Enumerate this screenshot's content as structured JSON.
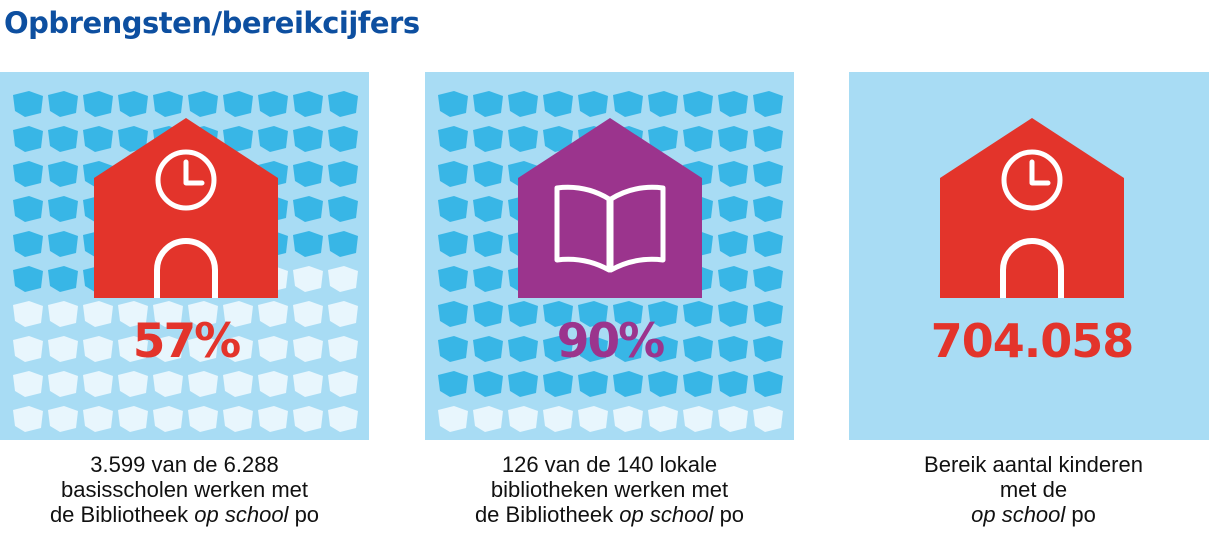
{
  "page": {
    "title": "Opbrengsten/bereikcijfers"
  },
  "colors": {
    "panel_bg": "#a8dcf4",
    "tile_blue": "#38b6e6",
    "tile_white": "#e8f6fd",
    "title_blue": "#0d4fa0",
    "red": "#e3342b",
    "purple": "#9b348d"
  },
  "panels": [
    {
      "id": "schools",
      "icon": "clock-icon",
      "house_color": "#e3342b",
      "value_label": "57%",
      "value_color": "#e3342b",
      "fraction": 0.57,
      "caption_line1": "3.599 van de 6.288",
      "caption_line2": "basisscholen werken met",
      "caption_line3_pre": "de Bibliotheek ",
      "caption_line3_em": "op school",
      "caption_line3_post": " po"
    },
    {
      "id": "libraries",
      "icon": "book-icon",
      "house_color": "#9b348d",
      "value_label": "90%",
      "value_color": "#9b348d",
      "fraction": 0.9,
      "caption_line1": "126 van de 140 lokale",
      "caption_line2": "bibliotheken werken met",
      "caption_line3_pre": "de Bibliotheek ",
      "caption_line3_em": "op school",
      "caption_line3_post": " po"
    },
    {
      "id": "children",
      "icon": "clock-icon",
      "house_color": "#e3342b",
      "value_label": "704.058",
      "value_color": "#e3342b",
      "caption_line1": "Bereik aantal kinderen",
      "caption_line2": "met de",
      "caption_line3_pre": "",
      "caption_line3_em": "op school",
      "caption_line3_post": " po"
    }
  ]
}
